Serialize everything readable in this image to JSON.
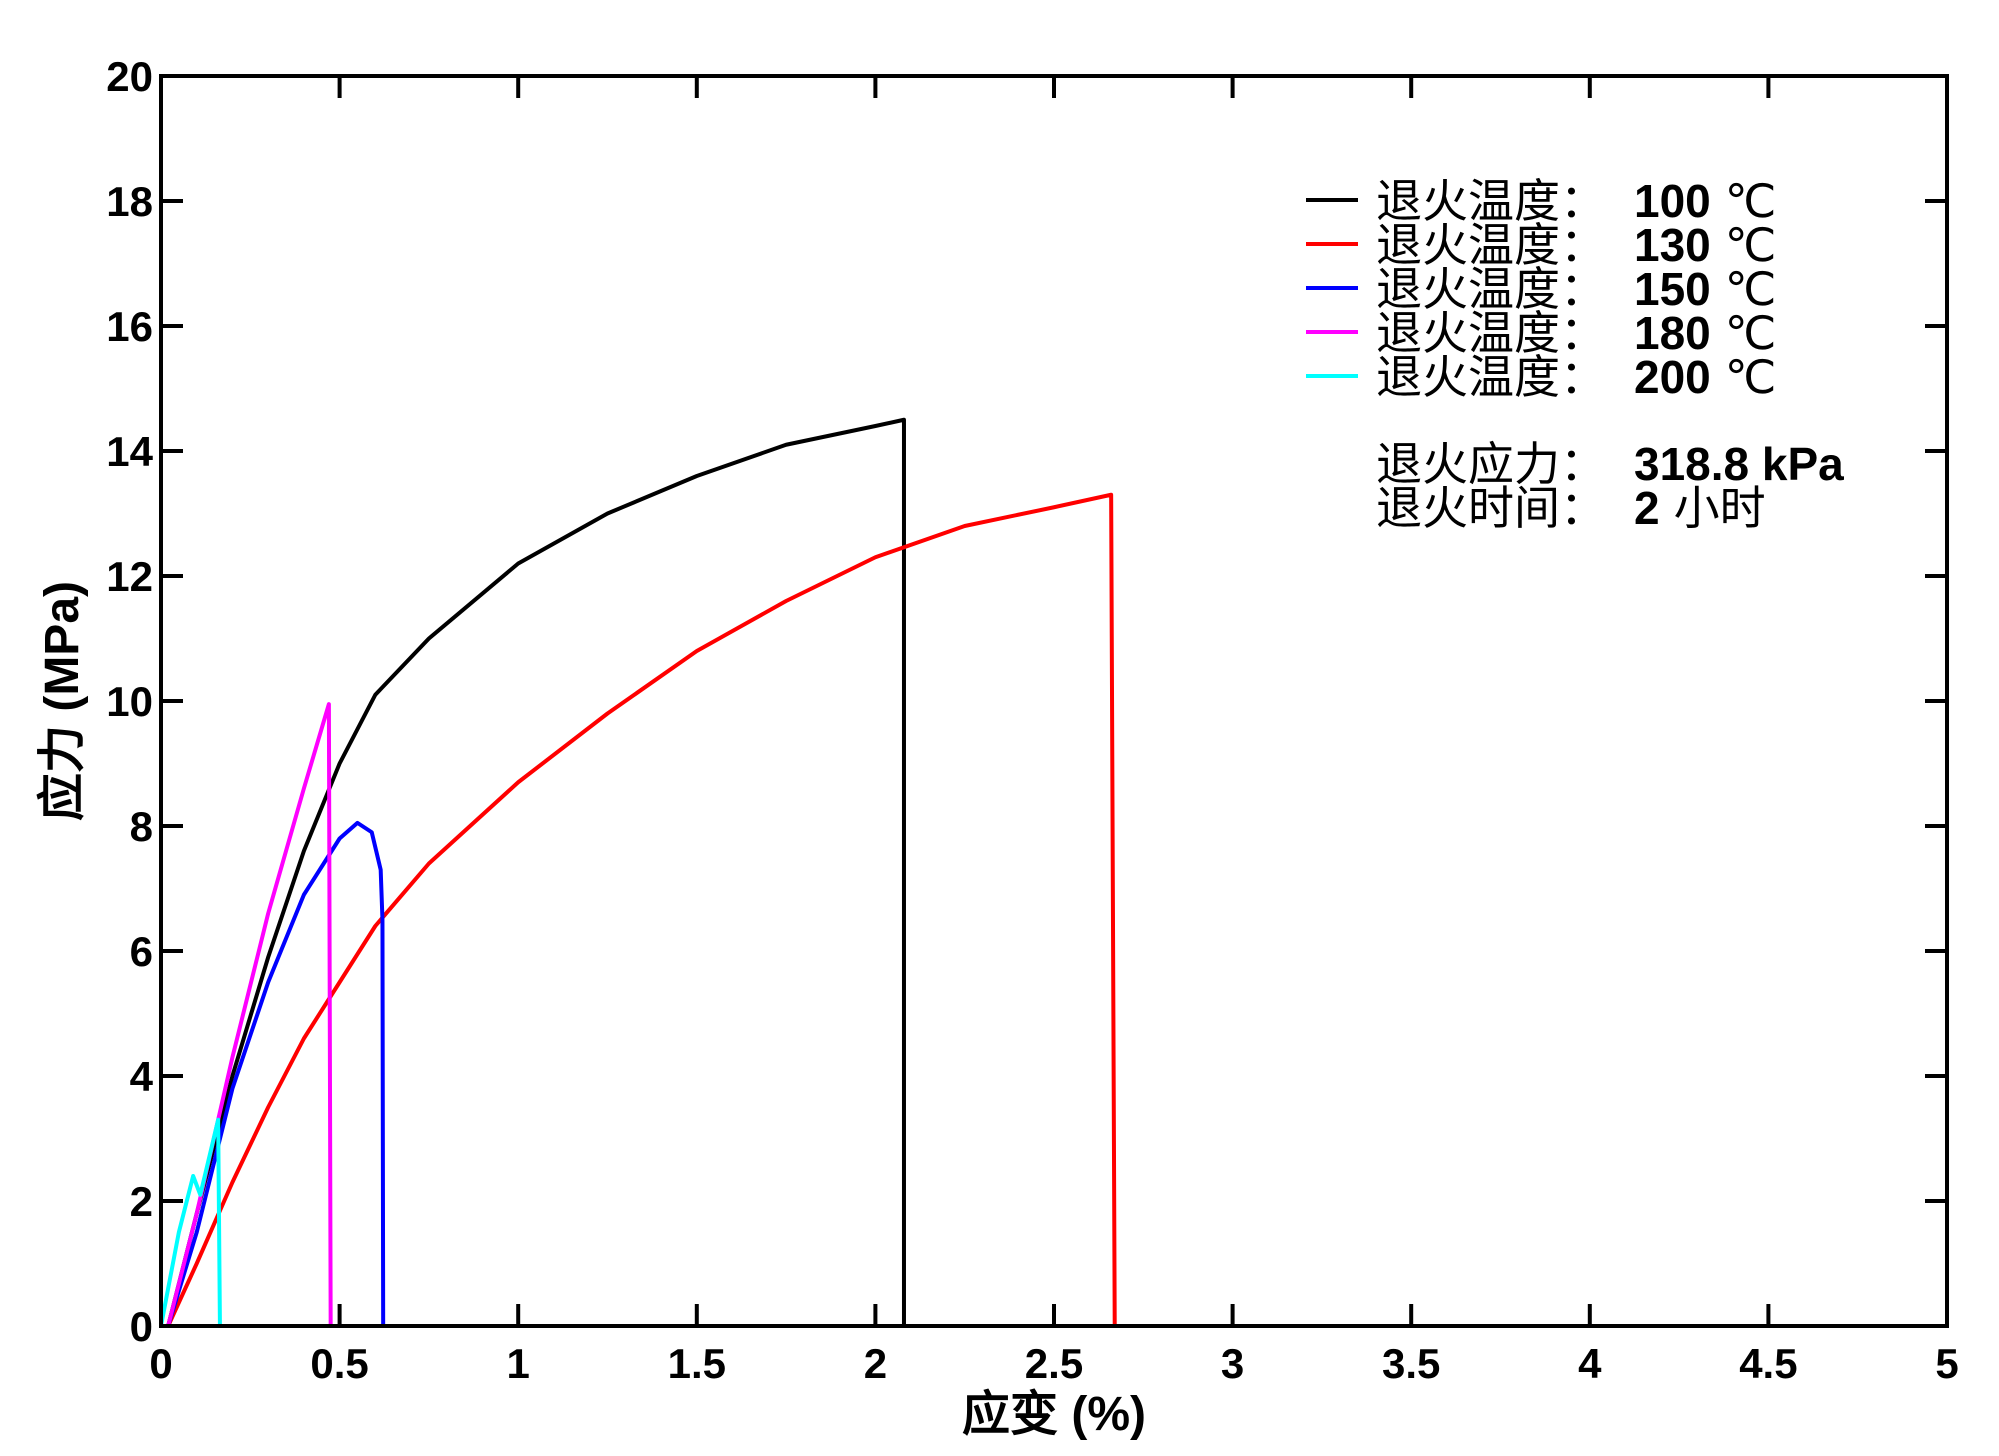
{
  "chart_data": {
    "type": "line",
    "xlabel": "应变 (%)",
    "ylabel": "应力 (MPa)",
    "xlim": [
      0,
      5
    ],
    "ylim": [
      0,
      20
    ],
    "xticks": [
      "0",
      "0.5",
      "1",
      "1.5",
      "2",
      "2.5",
      "3",
      "3.5",
      "4",
      "4.5",
      "5"
    ],
    "yticks": [
      "0",
      "2",
      "4",
      "6",
      "8",
      "10",
      "12",
      "14",
      "16",
      "18",
      "20"
    ],
    "grid": false,
    "legend_position": "top-right",
    "series": [
      {
        "name": "退火温度：100 ℃",
        "label": "退火温度：",
        "value": "100",
        "unit": "℃",
        "color": "#000000",
        "x": [
          0.02,
          0.1,
          0.2,
          0.3,
          0.4,
          0.5,
          0.6,
          0.75,
          1.0,
          1.25,
          1.5,
          1.75,
          2.0,
          2.08,
          2.08
        ],
        "y": [
          0,
          1.8,
          4.0,
          5.9,
          7.6,
          9.0,
          10.1,
          11.0,
          12.2,
          13.0,
          13.6,
          14.1,
          14.4,
          14.5,
          0
        ]
      },
      {
        "name": "退火温度：130 ℃",
        "label": "退火温度：",
        "value": "130",
        "unit": "℃",
        "color": "#ff0000",
        "x": [
          0.02,
          0.1,
          0.2,
          0.3,
          0.4,
          0.5,
          0.6,
          0.75,
          1.0,
          1.25,
          1.5,
          1.75,
          2.0,
          2.25,
          2.5,
          2.66,
          2.67
        ],
        "y": [
          0,
          1.0,
          2.3,
          3.5,
          4.6,
          5.5,
          6.4,
          7.4,
          8.7,
          9.8,
          10.8,
          11.6,
          12.3,
          12.8,
          13.1,
          13.3,
          0
        ]
      },
      {
        "name": "退火温度：150 ℃",
        "label": "退火温度：",
        "value": "150",
        "unit": "℃",
        "color": "#0000ff",
        "x": [
          0.02,
          0.1,
          0.2,
          0.3,
          0.4,
          0.5,
          0.55,
          0.59,
          0.615,
          0.62,
          0.622
        ],
        "y": [
          0,
          1.5,
          3.8,
          5.5,
          6.9,
          7.8,
          8.05,
          7.9,
          7.3,
          6.5,
          0
        ]
      },
      {
        "name": "退火温度：180 ℃",
        "label": "退火温度：",
        "value": "180",
        "unit": "℃",
        "color": "#ff00ff",
        "x": [
          0.02,
          0.1,
          0.2,
          0.3,
          0.4,
          0.47,
          0.475
        ],
        "y": [
          0,
          1.8,
          4.3,
          6.6,
          8.6,
          9.95,
          0
        ]
      },
      {
        "name": "退火温度：200 ℃",
        "label": "退火温度：",
        "value": "200",
        "unit": "℃",
        "color": "#00ffff",
        "x": [
          0,
          0.05,
          0.09,
          0.11,
          0.16,
          0.165
        ],
        "y": [
          0,
          1.5,
          2.4,
          2.1,
          3.3,
          0
        ]
      }
    ],
    "annotations": [
      {
        "label": "退火应力：",
        "value": "318.8 kPa"
      },
      {
        "label": "退火时间：",
        "value": "2",
        "unit": "小时"
      }
    ]
  }
}
